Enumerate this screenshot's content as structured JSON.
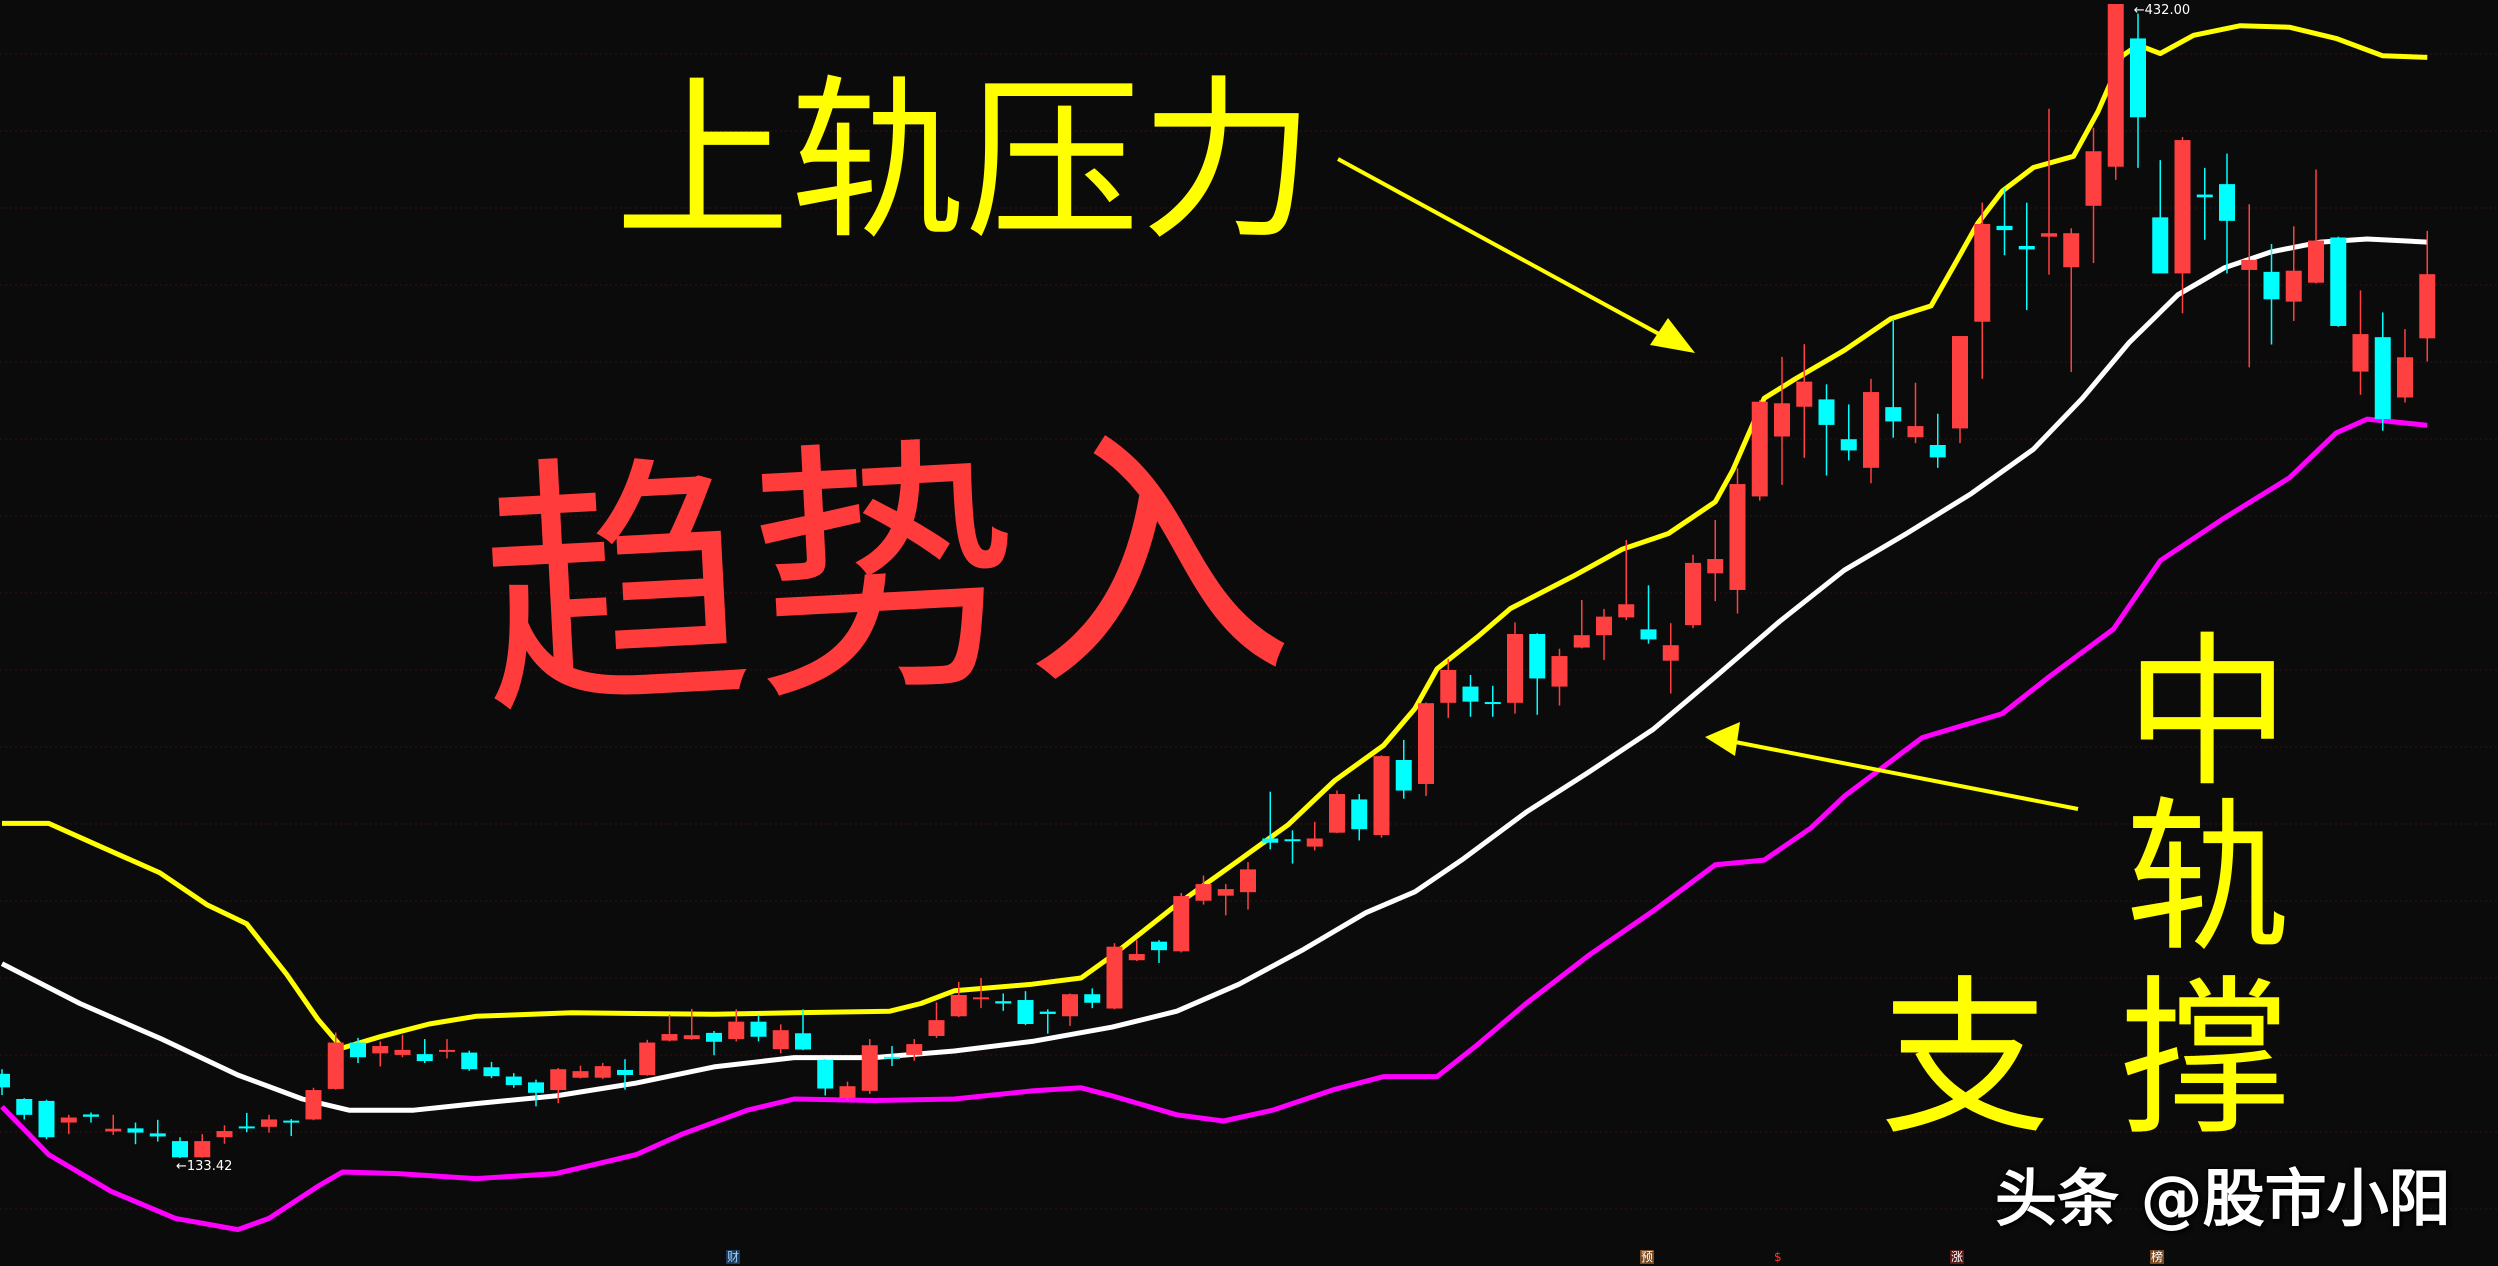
{
  "chart_data": {
    "type": "candlestick",
    "title": "",
    "xlabel": "",
    "ylabel": "",
    "ylim": [
      133.42,
      432.0
    ],
    "grid": "horizontal dotted",
    "colors": {
      "up": "#ff4040",
      "down": "#00ffff",
      "upper_band": "#ffff00",
      "middle_band": "#ffffff",
      "lower_band": "#ff00ff",
      "background": "#0b0b0b"
    },
    "ohlc_fields": [
      "open",
      "high",
      "low",
      "close"
    ],
    "ohlc": [
      [
        155.2,
        156.4,
        149.7,
        151.7
      ],
      [
        148.7,
        148.9,
        143.4,
        144.6
      ],
      [
        148.2,
        148.5,
        138.3,
        138.8
      ],
      [
        142.6,
        144.6,
        139.6,
        143.9
      ],
      [
        144.7,
        145.2,
        142.6,
        144.1
      ],
      [
        140.3,
        144.6,
        139.4,
        141.0
      ],
      [
        141.1,
        142.6,
        137.0,
        140.0
      ],
      [
        139.8,
        143.3,
        137.7,
        139.0
      ],
      [
        137.8,
        138.8,
        133.42,
        133.6
      ],
      [
        133.6,
        139.6,
        133.5,
        137.8
      ],
      [
        138.8,
        141.9,
        137.1,
        140.4
      ],
      [
        141.6,
        145.1,
        140.1,
        141.3
      ],
      [
        141.5,
        144.6,
        140.0,
        143.4
      ],
      [
        143.1,
        143.5,
        139.1,
        142.6
      ],
      [
        143.4,
        151.6,
        143.2,
        151.0
      ],
      [
        151.3,
        165.9,
        151.1,
        163.3
      ],
      [
        163.3,
        164.5,
        158.0,
        159.5
      ],
      [
        160.5,
        163.6,
        157.1,
        162.4
      ],
      [
        160.1,
        165.3,
        159.5,
        161.4
      ],
      [
        160.3,
        164.2,
        158.0,
        158.5
      ],
      [
        161.1,
        164.2,
        159.2,
        161.4
      ],
      [
        160.7,
        161.2,
        156.0,
        156.4
      ],
      [
        156.9,
        158.3,
        154.1,
        154.6
      ],
      [
        154.5,
        155.4,
        151.6,
        152.3
      ],
      [
        153.0,
        153.7,
        146.8,
        150.3
      ],
      [
        151.0,
        156.7,
        147.6,
        156.4
      ],
      [
        154.2,
        157.3,
        154.0,
        155.9
      ],
      [
        154.2,
        158.0,
        153.9,
        157.2
      ],
      [
        156.2,
        159.0,
        151.1,
        154.9
      ],
      [
        154.9,
        164.0,
        154.7,
        163.3
      ],
      [
        163.8,
        170.5,
        163.6,
        165.5
      ],
      [
        164.2,
        172.0,
        164.0,
        165.2
      ],
      [
        165.8,
        166.3,
        160.0,
        163.5
      ],
      [
        164.2,
        171.9,
        163.6,
        168.7
      ],
      [
        168.7,
        170.5,
        163.6,
        164.8
      ],
      [
        161.6,
        168.0,
        160.5,
        166.5
      ],
      [
        165.7,
        171.9,
        161.3,
        161.5
      ],
      [
        158.8,
        159.0,
        149.6,
        151.4
      ],
      [
        149.0,
        153.2,
        148.4,
        152.0
      ],
      [
        150.8,
        164.2,
        150.0,
        162.6
      ],
      [
        159.6,
        162.4,
        157.2,
        159.4
      ],
      [
        160.1,
        164.2,
        158.6,
        162.9
      ],
      [
        165.0,
        173.7,
        164.5,
        169.1
      ],
      [
        170.1,
        179.0,
        169.9,
        175.6
      ],
      [
        174.6,
        180.0,
        172.2,
        175.0
      ],
      [
        174.0,
        176.0,
        171.5,
        173.4
      ],
      [
        174.3,
        176.6,
        167.8,
        168.1
      ],
      [
        171.3,
        171.9,
        165.6,
        170.7
      ],
      [
        170.1,
        176.0,
        167.6,
        175.8
      ],
      [
        175.8,
        177.3,
        172.2,
        173.6
      ],
      [
        172.1,
        189.0,
        171.9,
        188.1
      ],
      [
        184.6,
        189.8,
        184.4,
        186.2
      ],
      [
        189.4,
        189.8,
        183.9,
        187.2
      ],
      [
        186.9,
        202.0,
        186.6,
        201.2
      ],
      [
        200.0,
        206.5,
        199.0,
        204.3
      ],
      [
        201.3,
        204.3,
        196.2,
        203.0
      ],
      [
        202.2,
        210.0,
        197.7,
        208.1
      ],
      [
        216.1,
        228.2,
        213.3,
        215.0
      ],
      [
        215.9,
        218.2,
        209.6,
        215.7
      ],
      [
        214.0,
        220.4,
        213.0,
        216.1
      ],
      [
        217.6,
        228.5,
        217.5,
        227.6
      ],
      [
        226.2,
        227.6,
        215.6,
        218.5
      ],
      [
        217.0,
        237.6,
        216.3,
        237.4
      ],
      [
        236.4,
        241.6,
        226.4,
        228.5
      ],
      [
        230.2,
        251.3,
        227.1,
        251.1
      ],
      [
        251.2,
        262.5,
        247.3,
        259.7
      ],
      [
        255.4,
        258.4,
        247.6,
        251.5
      ],
      [
        251.4,
        255.6,
        247.6,
        251.2
      ],
      [
        251.2,
        272.0,
        248.4,
        269.0
      ],
      [
        269.0,
        269.2,
        248.1,
        257.5
      ],
      [
        255.4,
        265.2,
        250.5,
        263.3
      ],
      [
        265.5,
        277.8,
        265.3,
        268.7
      ],
      [
        268.7,
        275.5,
        262.3,
        273.5
      ],
      [
        273.3,
        293.3,
        272.6,
        276.7
      ],
      [
        270.2,
        281.6,
        266.5,
        267.6
      ],
      [
        262.1,
        271.8,
        253.6,
        266.1
      ],
      [
        271.3,
        289.5,
        270.5,
        287.4
      ],
      [
        284.7,
        298.5,
        277.5,
        288.4
      ],
      [
        280.4,
        311.9,
        274.3,
        307.8
      ],
      [
        304.6,
        329.5,
        303.5,
        329.1
      ],
      [
        320.1,
        340.7,
        307.6,
        328.7
      ],
      [
        327.8,
        344.0,
        314.6,
        334.3
      ],
      [
        329.7,
        333.6,
        310.0,
        323.1
      ],
      [
        319.4,
        328.4,
        313.9,
        316.5
      ],
      [
        312.0,
        335.0,
        308.0,
        331.6
      ],
      [
        327.7,
        350.5,
        319.8,
        324.0
      ],
      [
        319.9,
        334.0,
        318.4,
        322.8
      ],
      [
        317.9,
        326.0,
        312.0,
        314.7
      ],
      [
        322.2,
        346.1,
        318.4,
        346.1
      ],
      [
        349.8,
        380.6,
        335.0,
        375.1
      ],
      [
        374.6,
        384.3,
        367.0,
        373.5
      ],
      [
        369.4,
        380.6,
        352.8,
        368.5
      ],
      [
        371.8,
        404.9,
        362.0,
        372.7
      ],
      [
        363.9,
        374.0,
        336.8,
        372.7
      ],
      [
        379.8,
        400.0,
        365.0,
        393.9
      ],
      [
        389.9,
        432.0,
        386.5,
        432.0
      ],
      [
        423.1,
        429.5,
        389.6,
        402.7
      ],
      [
        376.8,
        391.6,
        362.3,
        362.3
      ],
      [
        362.3,
        397.6,
        352.0,
        396.8
      ],
      [
        382.7,
        389.6,
        371.0,
        382.0
      ],
      [
        385.4,
        393.3,
        362.3,
        375.9
      ],
      [
        363.2,
        380.2,
        338.0,
        365.8
      ],
      [
        362.7,
        369.9,
        343.9,
        355.6
      ],
      [
        355.0,
        374.5,
        350.0,
        363.0
      ],
      [
        359.9,
        389.2,
        359.7,
        370.8
      ],
      [
        371.6,
        371.8,
        348.5,
        348.7
      ],
      [
        336.9,
        357.9,
        330.9,
        346.6
      ],
      [
        345.8,
        352.2,
        321.6,
        324.6
      ],
      [
        330.2,
        347.9,
        328.9,
        340.6
      ],
      [
        345.5,
        373.3,
        339.5,
        362.1
      ]
    ],
    "bands": {
      "upper": [
        [
          0,
          220
        ],
        [
          2.1,
          220
        ],
        [
          4.2,
          214.6
        ],
        [
          7.1,
          207.2
        ],
        [
          9.2,
          199
        ],
        [
          11,
          194
        ],
        [
          12.8,
          180.9
        ],
        [
          14.2,
          169.3
        ],
        [
          15.3,
          161.9
        ],
        [
          17,
          164.8
        ],
        [
          19.2,
          168.1
        ],
        [
          21.3,
          170.1
        ],
        [
          25.6,
          171
        ],
        [
          32,
          170.6
        ],
        [
          35.6,
          171
        ],
        [
          39.9,
          171.4
        ],
        [
          41.3,
          173.4
        ],
        [
          42.8,
          176.7
        ],
        [
          46.3,
          178.4
        ],
        [
          48.5,
          180
        ],
        [
          49.9,
          185.8
        ],
        [
          52.8,
          199
        ],
        [
          55.6,
          210.5
        ],
        [
          57.8,
          219.6
        ],
        [
          59.9,
          231.1
        ],
        [
          62.1,
          240.2
        ],
        [
          63.5,
          249.7
        ],
        [
          64.5,
          260
        ],
        [
          66.3,
          268.2
        ],
        [
          67.8,
          275.6
        ],
        [
          70.6,
          283.9
        ],
        [
          72.8,
          290.9
        ],
        [
          74.9,
          295
        ],
        [
          77,
          303.2
        ],
        [
          77.8,
          311.5
        ],
        [
          79.2,
          330
        ],
        [
          80.6,
          335
        ],
        [
          82.8,
          342.4
        ],
        [
          84.9,
          350.6
        ],
        [
          86.7,
          353.9
        ],
        [
          87.8,
          365
        ],
        [
          88.8,
          375.3
        ],
        [
          89.9,
          383.6
        ],
        [
          91.3,
          389.7
        ],
        [
          93.1,
          392.6
        ],
        [
          94.2,
          404.2
        ],
        [
          95.3,
          418.6
        ],
        [
          96,
          421.4
        ],
        [
          97,
          419.2
        ],
        [
          98.5,
          423.9
        ],
        [
          100.6,
          426.4
        ],
        [
          102.8,
          426
        ],
        [
          104.9,
          423.1
        ],
        [
          107,
          418.6
        ],
        [
          109,
          418.2
        ]
      ],
      "middle": [
        [
          0,
          183.7
        ],
        [
          3.5,
          173.4
        ],
        [
          7.1,
          164.4
        ],
        [
          10.6,
          154.9
        ],
        [
          13.5,
          148.7
        ],
        [
          15.6,
          145.8
        ],
        [
          18.5,
          145.8
        ],
        [
          21.3,
          147.5
        ],
        [
          24.9,
          149.5
        ],
        [
          28.5,
          152.8
        ],
        [
          32,
          157
        ],
        [
          35.6,
          159.4
        ],
        [
          39.2,
          159.4
        ],
        [
          42.8,
          161.1
        ],
        [
          46.3,
          163.6
        ],
        [
          49.9,
          167.3
        ],
        [
          52.8,
          171.4
        ],
        [
          55.6,
          178.4
        ],
        [
          58.5,
          187.4
        ],
        [
          61.3,
          196.9
        ],
        [
          63.5,
          202.3
        ],
        [
          65.6,
          210.5
        ],
        [
          68.5,
          222.9
        ],
        [
          71.3,
          233.2
        ],
        [
          74.2,
          244.3
        ],
        [
          77,
          257.9
        ],
        [
          79.9,
          272.3
        ],
        [
          82.8,
          285.5
        ],
        [
          85.6,
          295
        ],
        [
          88.5,
          305.3
        ],
        [
          91.3,
          316.8
        ],
        [
          93.5,
          330
        ],
        [
          95.6,
          344.4
        ],
        [
          97.8,
          356.8
        ],
        [
          99.9,
          363.8
        ],
        [
          102,
          367.9
        ],
        [
          104.2,
          370.4
        ],
        [
          106.3,
          371.2
        ],
        [
          109,
          370.4
        ]
      ],
      "lower": [
        [
          0,
          146.7
        ],
        [
          2.1,
          134.3
        ],
        [
          4.9,
          124.8
        ],
        [
          7.8,
          117.8
        ],
        [
          10.6,
          114.9
        ],
        [
          12,
          117.8
        ],
        [
          14.2,
          126.1
        ],
        [
          15.3,
          129.8
        ],
        [
          17.8,
          129.4
        ],
        [
          21.3,
          128.1
        ],
        [
          24.9,
          129.4
        ],
        [
          28.5,
          134.3
        ],
        [
          30.6,
          139.7
        ],
        [
          33.5,
          145.8
        ],
        [
          35.6,
          148.7
        ],
        [
          39.2,
          148.3
        ],
        [
          42.8,
          148.7
        ],
        [
          46.3,
          150.8
        ],
        [
          48.5,
          151.6
        ],
        [
          49.9,
          149.5
        ],
        [
          52.8,
          144.6
        ],
        [
          54.9,
          143
        ],
        [
          57.1,
          145.8
        ],
        [
          59.9,
          151.2
        ],
        [
          62.1,
          154.5
        ],
        [
          64.5,
          154.5
        ],
        [
          66.3,
          162.7
        ],
        [
          68.5,
          173.4
        ],
        [
          71.3,
          185.8
        ],
        [
          74.2,
          197.3
        ],
        [
          77,
          209.3
        ],
        [
          79.2,
          210.5
        ],
        [
          81.3,
          218.8
        ],
        [
          82.8,
          227
        ],
        [
          86.3,
          242.2
        ],
        [
          89.9,
          248.4
        ],
        [
          92,
          257.9
        ],
        [
          94.9,
          270.3
        ],
        [
          97,
          288
        ],
        [
          99.9,
          299.1
        ],
        [
          102.8,
          309.4
        ],
        [
          104.9,
          321
        ],
        [
          106.3,
          324.6
        ],
        [
          109,
          323
        ]
      ]
    },
    "annotations": {
      "high_label": "432.00",
      "low_label": "133.42",
      "upper_note": "上轨压力",
      "trend_note": "趋势入",
      "middle_note_1": "中轨",
      "middle_note_2": "支撑"
    },
    "bottom_markers": [
      "财",
      "预",
      "$",
      "涨",
      "榜"
    ]
  },
  "watermark": "头条 @股市小阳"
}
